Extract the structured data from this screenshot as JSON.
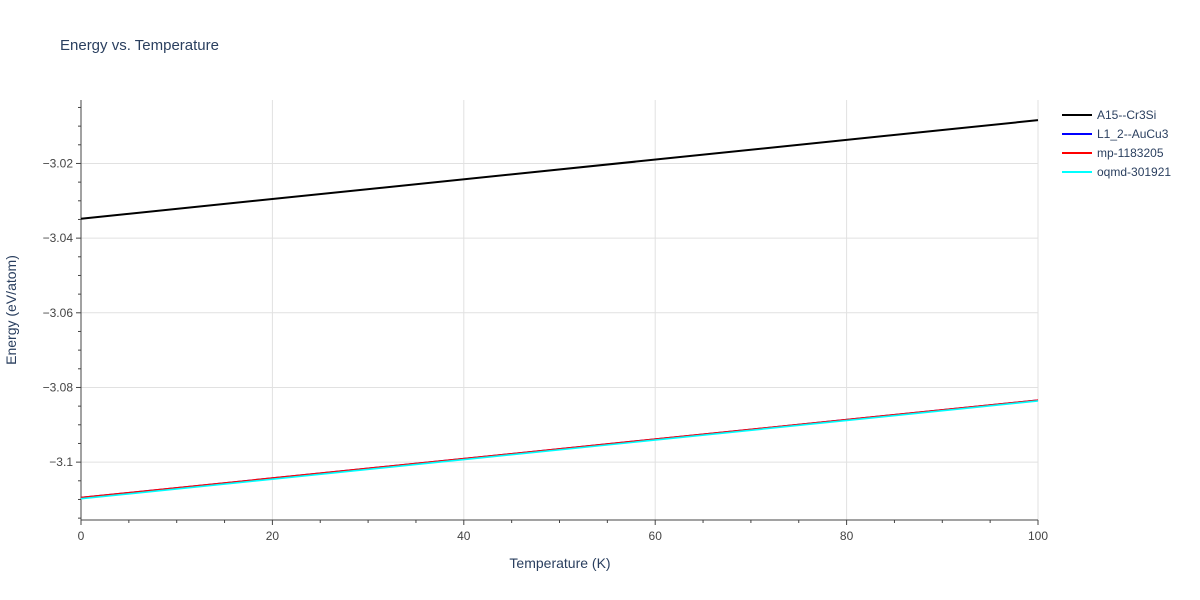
{
  "chart_data": {
    "type": "line",
    "title": "Energy vs. Temperature",
    "xlabel": "Temperature (K)",
    "ylabel": "Energy (eV/atom)",
    "xlim": [
      0,
      100
    ],
    "ylim": [
      -3.1155,
      -3.003
    ],
    "x_ticks": [
      0,
      20,
      40,
      60,
      80,
      100
    ],
    "x_tick_labels": [
      "0",
      "20",
      "40",
      "60",
      "80",
      "100"
    ],
    "y_ticks": [
      -3.1,
      -3.08,
      -3.06,
      -3.04,
      -3.02
    ],
    "y_tick_labels": [
      "−3.1",
      "−3.08",
      "−3.06",
      "−3.04",
      "−3.02"
    ],
    "grid": true,
    "legend_position": "top-right outside",
    "series": [
      {
        "name": "A15--Cr3Si",
        "color": "#000000",
        "x": [
          0,
          100
        ],
        "y": [
          -3.0348,
          -3.0084
        ]
      },
      {
        "name": "L1_2--AuCu3",
        "color": "#0000ff",
        "x": [
          0,
          100
        ],
        "y": [
          -3.1095,
          -3.0834
        ]
      },
      {
        "name": "mp-1183205",
        "color": "#ff0000",
        "x": [
          0,
          100
        ],
        "y": [
          -3.1095,
          -3.0834
        ]
      },
      {
        "name": "oqmd-301921",
        "color": "#00ffff",
        "x": [
          0,
          100
        ],
        "y": [
          -3.1098,
          -3.0836
        ]
      }
    ]
  }
}
